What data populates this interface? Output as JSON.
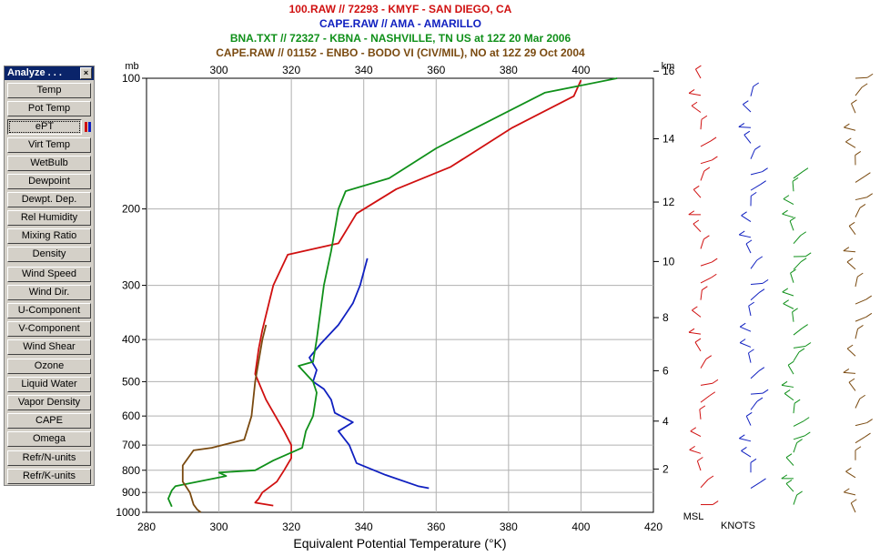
{
  "titles": [
    {
      "text": "100.RAW // 72293 - KMYF - SAN DIEGO, CA",
      "color": "#d01010"
    },
    {
      "text": "CAPE.RAW // AMA - AMARILLO",
      "color": "#1020c0"
    },
    {
      "text": "BNA.TXT // 72327 - KBNA - NASHVILLE, TN US  at 12Z 20 Mar 2006",
      "color": "#10901a"
    },
    {
      "text": "CAPE.RAW // 01152 - ENBO - BODO VI (CIV/MIL), NO  at 12Z 29 Oct 2004",
      "color": "#7a4a10"
    }
  ],
  "panel": {
    "title": "Analyze . . .",
    "close": "×",
    "buttons": [
      "Temp",
      "Pot Temp",
      "ePT",
      "Virt Temp",
      "WetBulb",
      "Dewpoint",
      "Dewpt. Dep.",
      "Rel Humidity",
      "Mixing Ratio",
      "Density",
      "Wind Speed",
      "Wind Dir.",
      "U-Component",
      "V-Component",
      "Wind Shear",
      "Ozone",
      "Liquid Water",
      "Vapor Density",
      "CAPE",
      "Omega",
      "Refr/N-units",
      "Refr/K-units"
    ],
    "active": "ePT",
    "indicator_colors": [
      "#d01010",
      "#1020c0"
    ]
  },
  "chart_data": {
    "type": "line",
    "xlabel": "Equivalent Potential Temperature (°K)",
    "ylabel_left": "mb",
    "ylabel_right": "km",
    "xlim": [
      280,
      420
    ],
    "x_ticks": [
      280,
      300,
      320,
      340,
      360,
      380,
      400,
      420
    ],
    "x_ticks_top": [
      300,
      320,
      340,
      360,
      380,
      400
    ],
    "ylim": [
      1000,
      100
    ],
    "y_scale": "log",
    "y_ticks": [
      100,
      200,
      300,
      400,
      500,
      600,
      700,
      800,
      900,
      1000
    ],
    "km_ticks": [
      2,
      4,
      6,
      8,
      10,
      12,
      14,
      16
    ],
    "grid": true,
    "series": [
      {
        "name": "100.RAW // 72293 - KMYF - SAN DIEGO, CA",
        "color": "#d01010",
        "points": [
          [
            315,
            965
          ],
          [
            310,
            950
          ],
          [
            311,
            930
          ],
          [
            312,
            900
          ],
          [
            316,
            850
          ],
          [
            318,
            800
          ],
          [
            320,
            750
          ],
          [
            320,
            700
          ],
          [
            318,
            650
          ],
          [
            313,
            550
          ],
          [
            310,
            480
          ],
          [
            311,
            420
          ],
          [
            312,
            380
          ],
          [
            315,
            300
          ],
          [
            319,
            255
          ],
          [
            333,
            240
          ],
          [
            338,
            205
          ],
          [
            349,
            180
          ],
          [
            364,
            160
          ],
          [
            381,
            130
          ],
          [
            398,
            110
          ],
          [
            400,
            101
          ]
        ]
      },
      {
        "name": "CAPE.RAW // AMA - AMARILLO",
        "color": "#1020c0",
        "points": [
          [
            358,
            880
          ],
          [
            355,
            870
          ],
          [
            346,
            820
          ],
          [
            338,
            770
          ],
          [
            336,
            700
          ],
          [
            333,
            650
          ],
          [
            337,
            620
          ],
          [
            332,
            590
          ],
          [
            331,
            550
          ],
          [
            329,
            520
          ],
          [
            326,
            500
          ],
          [
            327,
            470
          ],
          [
            325,
            440
          ],
          [
            328,
            410
          ],
          [
            333,
            370
          ],
          [
            337,
            330
          ],
          [
            339,
            300
          ],
          [
            341,
            260
          ]
        ]
      },
      {
        "name": "BNA.TXT // 72327 - KBNA - NASHVILLE, TN US  at 12Z 20 Mar 2006",
        "color": "#10901a",
        "points": [
          [
            287,
            970
          ],
          [
            286,
            930
          ],
          [
            287,
            890
          ],
          [
            288,
            870
          ],
          [
            302,
            825
          ],
          [
            300,
            810
          ],
          [
            310,
            800
          ],
          [
            315,
            760
          ],
          [
            323,
            710
          ],
          [
            324,
            650
          ],
          [
            326,
            600
          ],
          [
            327,
            530
          ],
          [
            326,
            500
          ],
          [
            322,
            460
          ],
          [
            326,
            450
          ],
          [
            327,
            400
          ],
          [
            329,
            300
          ],
          [
            331,
            250
          ],
          [
            333,
            200
          ],
          [
            335,
            182
          ],
          [
            347,
            170
          ],
          [
            360,
            145
          ],
          [
            371,
            130
          ],
          [
            390,
            108
          ],
          [
            410,
            100
          ]
        ]
      },
      {
        "name": "CAPE.RAW // 01152 - ENBO - BODO VI (CIV/MIL), NO  at 12Z 29 Oct 2004",
        "color": "#7a4a10",
        "points": [
          [
            295,
            1000
          ],
          [
            294,
            985
          ],
          [
            293,
            960
          ],
          [
            292,
            900
          ],
          [
            290,
            850
          ],
          [
            290,
            780
          ],
          [
            293,
            720
          ],
          [
            298,
            710
          ],
          [
            307,
            680
          ],
          [
            309,
            600
          ],
          [
            310,
            500
          ],
          [
            312,
            400
          ],
          [
            313,
            370
          ]
        ]
      }
    ],
    "wind_labels": {
      "left": "MSL",
      "right": "KNOTS"
    }
  }
}
